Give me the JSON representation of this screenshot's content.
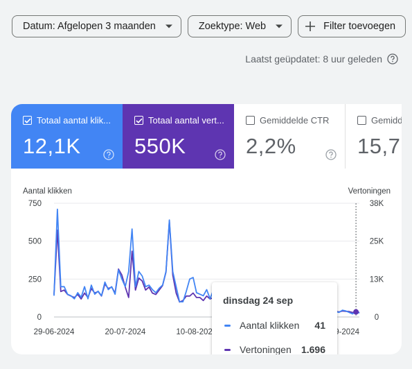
{
  "filters": {
    "date_label": "Datum: Afgelopen 3 maanden",
    "search_type_label": "Zoektype: Web",
    "add_filter_label": "Filter toevoegen"
  },
  "updated_text": "Laatst geüpdatet: 8 uur geleden",
  "metrics": [
    {
      "label": "Totaal aantal klik...",
      "value": "12,1K",
      "checked": true,
      "color": "#4285f4"
    },
    {
      "label": "Totaal aantal vert...",
      "value": "550K",
      "checked": true,
      "color": "#5e35b1"
    },
    {
      "label": "Gemiddelde CTR",
      "value": "2,2%",
      "checked": false
    },
    {
      "label": "Gemidde",
      "value": "15,7",
      "checked": false
    }
  ],
  "chart_data": {
    "type": "line",
    "x_tick_labels": [
      "29-06-2024",
      "20-07-2024",
      "10-08-2024",
      "31-08-2024",
      "21-09-2024"
    ],
    "left_axis": {
      "label": "Aantal klikken",
      "ticks": [
        "750",
        "500",
        "250",
        "0"
      ],
      "ylim": [
        0,
        750
      ]
    },
    "right_axis": {
      "label": "Vertoningen",
      "ticks": [
        "38K",
        "25K",
        "13K",
        "0"
      ],
      "ylim": [
        0,
        38000
      ]
    },
    "grid": true,
    "series": [
      {
        "name": "Aantal klikken",
        "axis": "left",
        "color": "#4285f4",
        "values": [
          140,
          710,
          200,
          200,
          150,
          140,
          120,
          160,
          130,
          200,
          120,
          210,
          150,
          170,
          140,
          230,
          180,
          200,
          150,
          310,
          250,
          200,
          300,
          580,
          200,
          300,
          270,
          200,
          210,
          180,
          160,
          190,
          210,
          300,
          640,
          300,
          200,
          100,
          100,
          170,
          250,
          260,
          160,
          150,
          140,
          180,
          120,
          180,
          120,
          140,
          90,
          60,
          50,
          80,
          50,
          30,
          40,
          60,
          50,
          45,
          40,
          100,
          50,
          40,
          70,
          40,
          40,
          30,
          30,
          50,
          45,
          40,
          30,
          40,
          60,
          30,
          40,
          55,
          50,
          30,
          40,
          50,
          40,
          35,
          30,
          45,
          40,
          30,
          20,
          41,
          25
        ]
      },
      {
        "name": "Vertoningen",
        "axis": "right",
        "color": "#5e35b1",
        "values": [
          7500,
          29000,
          8500,
          9000,
          7500,
          7000,
          6500,
          7500,
          6000,
          8000,
          6500,
          9500,
          8000,
          8500,
          7000,
          11000,
          9500,
          10000,
          8000,
          16000,
          14000,
          10000,
          6500,
          22000,
          9000,
          13000,
          12000,
          9000,
          10000,
          8000,
          7500,
          9000,
          10500,
          15000,
          32000,
          14000,
          8000,
          5000,
          5500,
          7000,
          7000,
          8000,
          6500,
          6500,
          5500,
          7000,
          6000,
          6500,
          5000,
          5500,
          4000,
          3500,
          3000,
          3500,
          2800,
          2000,
          2500,
          3000,
          2200,
          2000,
          2000,
          3500,
          2500,
          2000,
          3000,
          2200,
          2000,
          1800,
          1700,
          2200,
          2000,
          1800,
          1700,
          2000,
          2500,
          1700,
          2000,
          2500,
          2200,
          1800,
          2000,
          2400,
          2000,
          1900,
          1700,
          2000,
          1900,
          1800,
          1500,
          1696,
          1500
        ]
      }
    ]
  },
  "tooltip": {
    "date": "dinsdag 24 sep",
    "rows": [
      {
        "label": "Aantal klikken",
        "value": "41",
        "color": "#4285f4"
      },
      {
        "label": "Vertoningen",
        "value": "1.696",
        "color": "#5e35b1"
      }
    ]
  }
}
